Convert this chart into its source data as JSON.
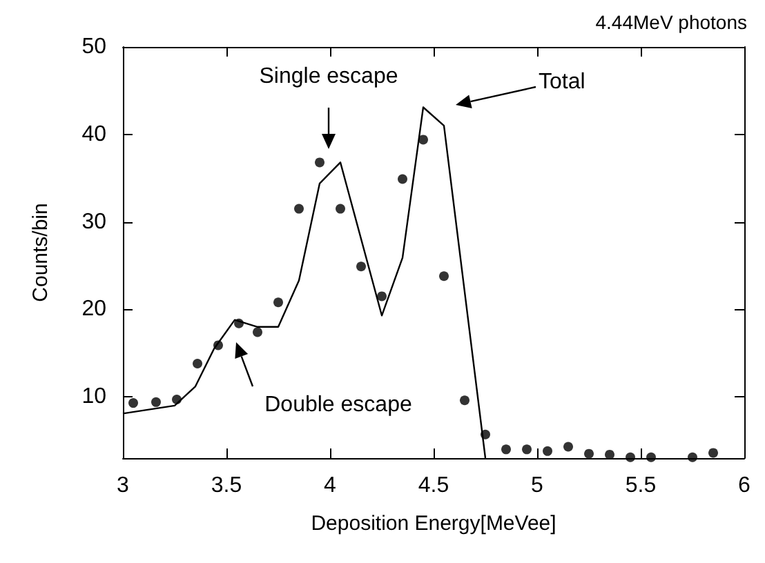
{
  "chart_data": {
    "type": "scatter",
    "title": "4.44MeV photons",
    "xlabel": "Deposition Energy[MeVee]",
    "ylabel": "Counts/bin",
    "xlim": [
      3,
      6
    ],
    "xticks": [
      3,
      3.5,
      4,
      4.5,
      5,
      5.5,
      6
    ],
    "ylim": [
      3,
      50
    ],
    "yticks": [
      10,
      20,
      30,
      40,
      50
    ],
    "grid": false,
    "marker": "circle",
    "series": [
      {
        "color": "#000000",
        "x": [
          3.05,
          3.16,
          3.26,
          3.36,
          3.46,
          3.56,
          3.65,
          3.75,
          3.85,
          3.95,
          4.05,
          4.15,
          4.25,
          4.35,
          4.45,
          4.55,
          4.65,
          4.75,
          4.85,
          4.95,
          5.05,
          5.15,
          5.25,
          5.35,
          5.45,
          5.55,
          5.75,
          5.85
        ],
        "values": [
          9.3,
          9.4,
          9.7,
          13.8,
          15.9,
          18.4,
          17.4,
          20.8,
          31.5,
          36.8,
          31.5,
          24.9,
          21.5,
          34.9,
          39.4,
          23.8,
          9.6,
          5.7,
          4.0,
          4.0,
          3.8,
          4.3,
          3.5,
          3.4,
          3.1,
          3.1,
          3.1,
          3.6
        ]
      },
      {
        "type": "line",
        "color": "#000000",
        "marker": "none",
        "line_style": "solid",
        "x": [
          3.0,
          3.25,
          3.35,
          3.44,
          3.54,
          3.65,
          3.75,
          3.85,
          3.95,
          4.05,
          4.25,
          4.35,
          4.45,
          4.55,
          4.75
        ],
        "values": [
          8.1,
          9.0,
          11.2,
          15.5,
          18.8,
          18.0,
          18.0,
          23.3,
          34.4,
          36.8,
          19.3,
          25.9,
          43.1,
          41.0,
          3
        ]
      }
    ],
    "annotations": [
      "Single escape",
      "Total",
      "Double escape"
    ]
  }
}
